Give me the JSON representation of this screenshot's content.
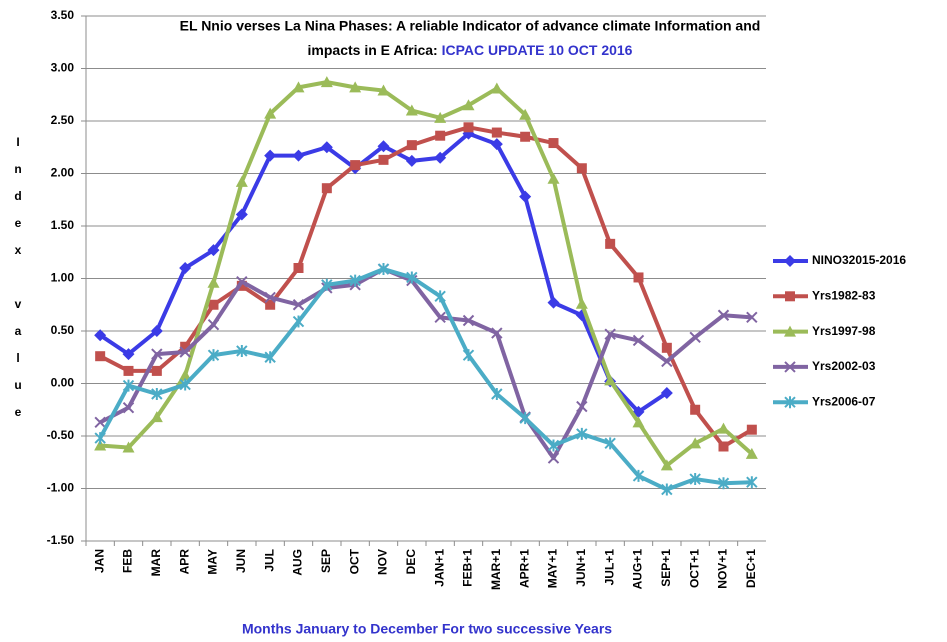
{
  "chart_data": {
    "type": "line",
    "title": [
      "EL Nnio verses La Nina Phases: A reliable Indicator of advance climate Information and",
      "impacts in E Africa:"
    ],
    "title_highlight": "ICPAC UPDATE 10 OCT 2016",
    "ylabel": "Index value",
    "xlabel": "Months January to December For two successive Years",
    "categories": [
      "JAN",
      "FEB",
      "MAR",
      "APR",
      "MAY",
      "JUN",
      "JUL",
      "AUG",
      "SEP",
      "OCT",
      "NOV",
      "DEC",
      "JAN+1",
      "FEB+1",
      "MAR+1",
      "APR+1",
      "MAY+1",
      "JUN+1",
      "JUL+1",
      "AUG+1",
      "SEP+1",
      "OCT+1",
      "NOV+1",
      "DEC+1"
    ],
    "ylim": [
      -1.5,
      3.5
    ],
    "yticks": [
      {
        "value": -1.5,
        "label": "-1.50"
      },
      {
        "value": -1,
        "label": "-1.00"
      },
      {
        "value": -0.5,
        "label": "-0.50"
      },
      {
        "value": 0,
        "label": "0.00"
      },
      {
        "value": 0.5,
        "label": "0.50"
      },
      {
        "value": 1,
        "label": "1.00"
      },
      {
        "value": 1.5,
        "label": "1.50"
      },
      {
        "value": 2,
        "label": "2.00"
      },
      {
        "value": 2.5,
        "label": "2.50"
      },
      {
        "value": 3,
        "label": "3.00"
      },
      {
        "value": 3.5,
        "label": "3.50"
      }
    ],
    "grid": true,
    "legend": "right",
    "series": [
      {
        "name": "NINO32015-2016",
        "color": "#3b3be6",
        "marker": "diamond",
        "values": [
          0.46,
          0.28,
          0.5,
          1.1,
          1.27,
          1.61,
          2.17,
          2.17,
          2.25,
          2.05,
          2.26,
          2.12,
          2.15,
          2.38,
          2.28,
          1.78,
          0.77,
          0.65,
          0.02,
          -0.27,
          -0.09,
          null,
          null,
          null
        ]
      },
      {
        "name": "Yrs1982-83",
        "color": "#c0504d",
        "marker": "square",
        "values": [
          0.26,
          0.12,
          0.12,
          0.35,
          0.75,
          0.93,
          0.75,
          1.1,
          1.86,
          2.08,
          2.13,
          2.27,
          2.36,
          2.44,
          2.39,
          2.35,
          2.29,
          2.05,
          1.33,
          1.01,
          0.34,
          -0.25,
          -0.6,
          -0.44
        ]
      },
      {
        "name": "Yrs1997-98",
        "color": "#9bbb59",
        "marker": "triangle",
        "values": [
          -0.59,
          -0.61,
          -0.32,
          0.08,
          0.96,
          1.92,
          2.57,
          2.82,
          2.87,
          2.82,
          2.79,
          2.6,
          2.53,
          2.65,
          2.81,
          2.56,
          1.95,
          0.76,
          0.03,
          -0.37,
          -0.78,
          -0.57,
          -0.43,
          -0.67
        ]
      },
      {
        "name": "Yrs2002-03",
        "color": "#8064a2",
        "marker": "x",
        "values": [
          -0.37,
          -0.23,
          0.28,
          0.3,
          0.56,
          0.97,
          0.82,
          0.75,
          0.91,
          0.94,
          1.09,
          0.98,
          0.63,
          0.6,
          0.48,
          -0.32,
          -0.71,
          -0.22,
          0.47,
          0.41,
          0.21,
          0.44,
          0.65,
          0.63
        ]
      },
      {
        "name": "Yrs2006-07",
        "color": "#4bacc6",
        "marker": "asterisk",
        "values": [
          -0.52,
          -0.02,
          -0.1,
          -0.01,
          0.27,
          0.31,
          0.25,
          0.59,
          0.94,
          0.98,
          1.09,
          1.01,
          0.83,
          0.27,
          -0.1,
          -0.33,
          -0.59,
          -0.48,
          -0.57,
          -0.88,
          -1.01,
          -0.91,
          -0.95,
          -0.94
        ]
      }
    ]
  }
}
